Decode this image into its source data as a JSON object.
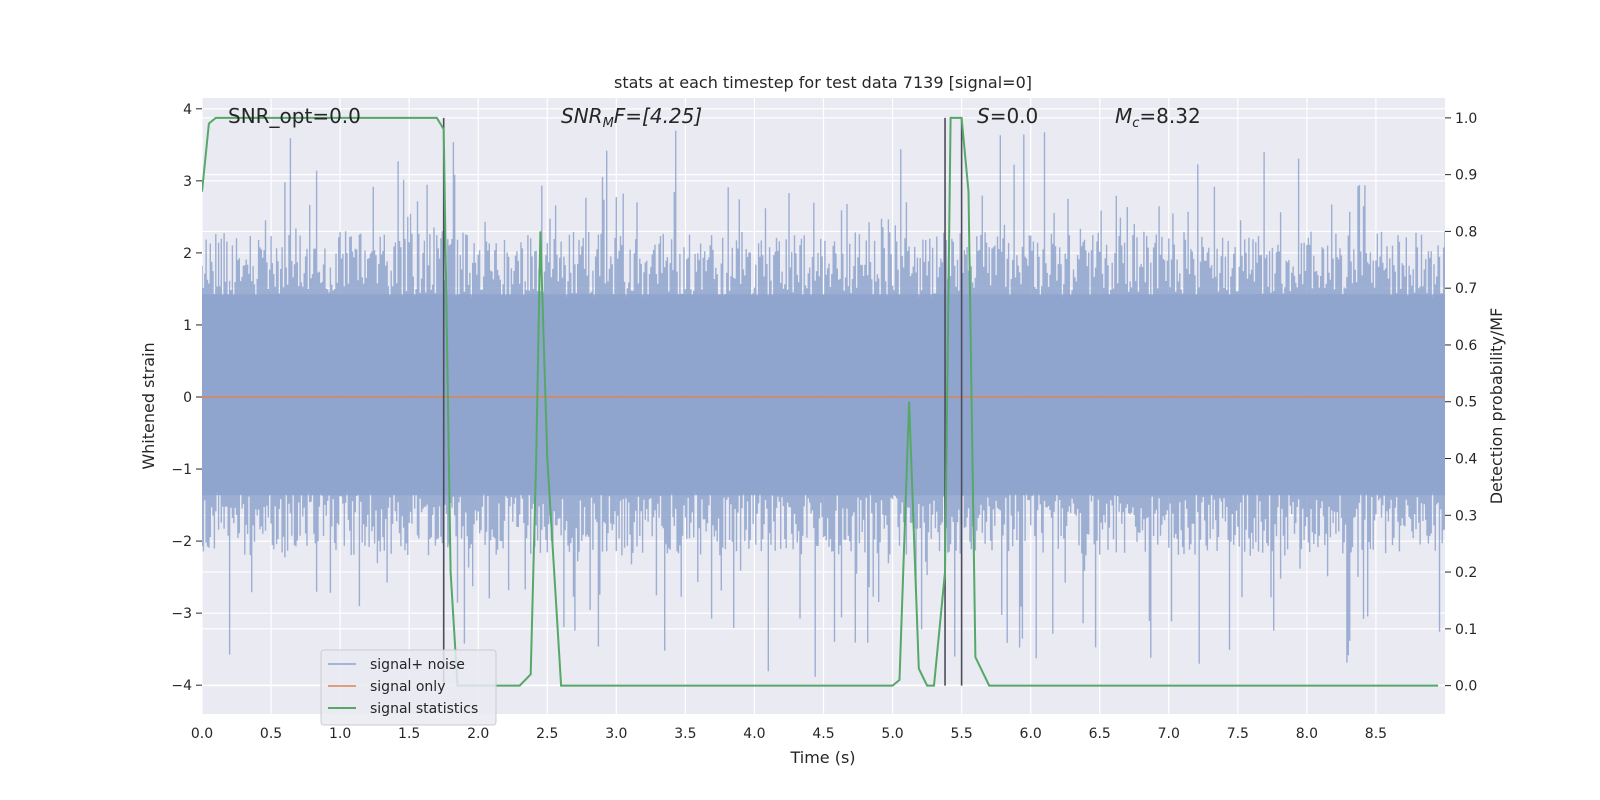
{
  "chart_data": {
    "type": "line",
    "title": "stats at each timestep for test data 7139 [signal=0]",
    "xlabel": "Time (s)",
    "ylabel": "Whitened strain",
    "ylabel_right": "Detection probability/MF",
    "xlim": [
      0.0,
      9.0
    ],
    "ylim_left": [
      -4.4,
      4.15
    ],
    "ylim_right": [
      -0.05,
      1.035
    ],
    "x_ticks": [
      "0.0",
      "0.5",
      "1.0",
      "1.5",
      "2.0",
      "2.5",
      "3.0",
      "3.5",
      "4.0",
      "4.5",
      "5.0",
      "5.5",
      "6.0",
      "6.5",
      "7.0",
      "7.5",
      "8.0",
      "8.5"
    ],
    "y_left_ticks": [
      "−4",
      "−3",
      "−2",
      "−1",
      "0",
      "1",
      "2",
      "3",
      "4"
    ],
    "y_right_ticks": [
      "0.0",
      "0.1",
      "0.2",
      "0.3",
      "0.4",
      "0.5",
      "0.6",
      "0.7",
      "0.8",
      "0.9",
      "1.0"
    ],
    "grid": true,
    "legend_position": "lower-left",
    "annotations": {
      "snr_opt": "SNR_opt=0.0",
      "snr_mf_label": "SNR",
      "snr_mf_sub": "M",
      "snr_mf_rest": "F=[4.25]",
      "s_label": "S",
      "s_rest": "=0.0",
      "mc_label": "M",
      "mc_sub": "c",
      "mc_rest": "=8.32"
    },
    "vertical_lines_x": [
      1.75,
      5.38,
      5.5
    ],
    "series": [
      {
        "name": "signal+ noise",
        "axis": "left",
        "color": "#8ea3cc",
        "envelope": {
          "typical_upper": 2.3,
          "typical_lower": -2.2,
          "peak_upper": 3.8,
          "peak_lower": -4.0
        }
      },
      {
        "name": "signal only",
        "axis": "left",
        "color": "#dd8452",
        "x": [
          0.0,
          9.0
        ],
        "y": [
          0.0,
          0.0
        ]
      },
      {
        "name": "signal statistics",
        "axis": "right",
        "color": "#55a868",
        "x": [
          0.0,
          0.05,
          0.1,
          0.15,
          0.5,
          1.0,
          1.5,
          1.7,
          1.75,
          1.8,
          1.85,
          1.9,
          2.0,
          2.3,
          2.38,
          2.42,
          2.45,
          2.5,
          2.6,
          3.0,
          4.0,
          5.0,
          5.05,
          5.12,
          5.19,
          5.25,
          5.3,
          5.38,
          5.42,
          5.48,
          5.5,
          5.55,
          5.6,
          5.7,
          5.75,
          6.0,
          7.0,
          8.0,
          8.95
        ],
        "y": [
          0.87,
          0.99,
          1.0,
          1.0,
          1.0,
          1.0,
          1.0,
          1.0,
          0.98,
          0.2,
          0.0,
          0.0,
          0.0,
          0.0,
          0.02,
          0.4,
          0.8,
          0.4,
          0.0,
          0.0,
          0.0,
          0.0,
          0.01,
          0.5,
          0.03,
          0.0,
          0.0,
          0.2,
          1.0,
          1.0,
          1.0,
          0.87,
          0.05,
          0.0,
          0.0,
          0.0,
          0.0,
          0.0,
          0.0
        ]
      }
    ],
    "legend": [
      "signal+ noise",
      "signal only",
      "signal statistics"
    ]
  }
}
